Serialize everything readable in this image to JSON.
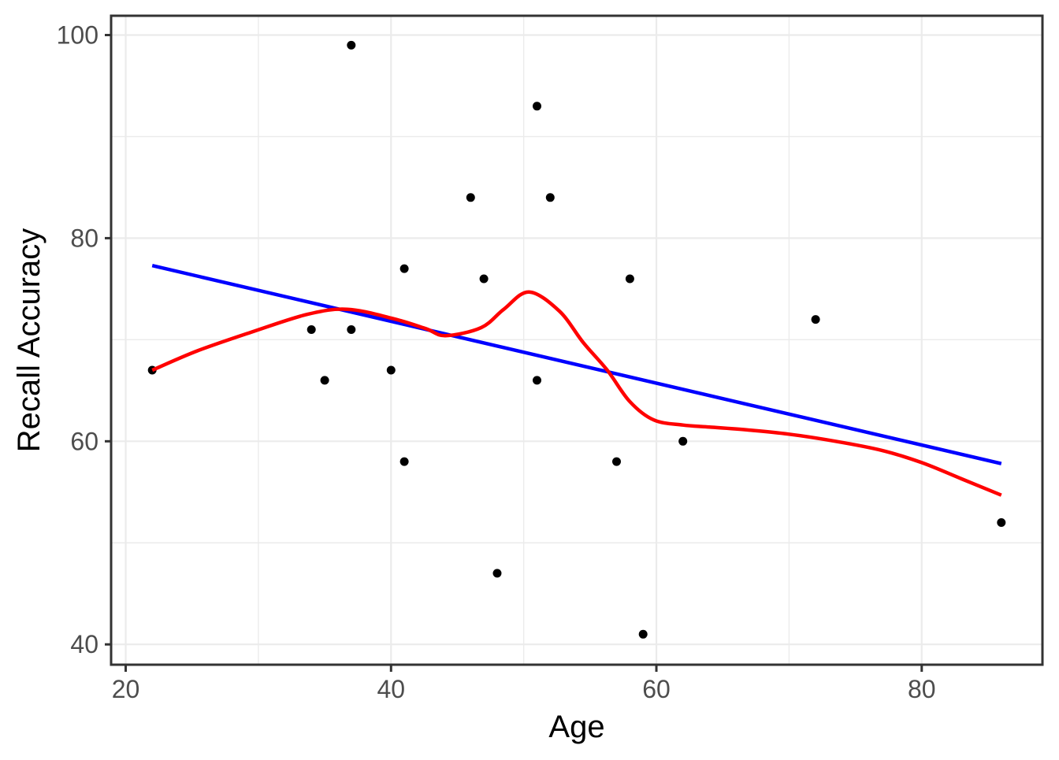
{
  "chart_data": {
    "type": "scatter",
    "title": "",
    "xlabel": "Age",
    "ylabel": "Recall Accuracy",
    "xlim": [
      18.9,
      89.1
    ],
    "ylim": [
      38.0,
      101.9
    ],
    "x_ticks": [
      20,
      40,
      60,
      80
    ],
    "y_ticks": [
      40,
      60,
      80,
      100
    ],
    "x_minor_gridlines": [
      30,
      50,
      70
    ],
    "y_minor_gridlines": [
      50,
      70,
      90
    ],
    "grid": true,
    "legend": "none",
    "points": [
      {
        "x": 22,
        "y": 67
      },
      {
        "x": 34,
        "y": 71
      },
      {
        "x": 35,
        "y": 66
      },
      {
        "x": 37,
        "y": 71
      },
      {
        "x": 37,
        "y": 99
      },
      {
        "x": 40,
        "y": 67
      },
      {
        "x": 41,
        "y": 58
      },
      {
        "x": 41,
        "y": 77
      },
      {
        "x": 46,
        "y": 84
      },
      {
        "x": 47,
        "y": 76
      },
      {
        "x": 48,
        "y": 47
      },
      {
        "x": 51,
        "y": 66
      },
      {
        "x": 51,
        "y": 93
      },
      {
        "x": 52,
        "y": 84
      },
      {
        "x": 57,
        "y": 58
      },
      {
        "x": 58,
        "y": 76
      },
      {
        "x": 59,
        "y": 41
      },
      {
        "x": 62,
        "y": 60
      },
      {
        "x": 72,
        "y": 72
      },
      {
        "x": 86,
        "y": 52
      }
    ],
    "series": [
      {
        "name": "linear-fit",
        "type": "line",
        "color": "#0000FF",
        "x": [
          22,
          86
        ],
        "y": [
          77.3,
          57.8
        ]
      },
      {
        "name": "loess-fit",
        "type": "smooth",
        "color": "#FF0000",
        "x": [
          22,
          25.4,
          29.6,
          33.7,
          36.7,
          40.1,
          42.6,
          44.1,
          46.8,
          48.5,
          50.4,
          52.7,
          54.5,
          56.3,
          58.0,
          59.8,
          62.0,
          64.0,
          67.0,
          70.0,
          73.5,
          77.0,
          80.0,
          83.0,
          86.0
        ],
        "y": [
          67.0,
          68.9,
          70.8,
          72.5,
          73.0,
          72.1,
          71.1,
          70.4,
          71.2,
          73.0,
          74.7,
          72.8,
          69.7,
          67.0,
          63.9,
          62.1,
          61.6,
          61.4,
          61.1,
          60.7,
          60.0,
          59.1,
          57.9,
          56.3,
          54.7
        ]
      }
    ]
  },
  "theme": {
    "background": "#FFFFFF",
    "panel_background": "#FFFFFF",
    "panel_border": "#333333",
    "grid_major": "#EBEBEB",
    "grid_minor": "#EBEBEB",
    "tick_mark": "#333333",
    "tick_label": "#4D4D4D",
    "axis_title": "#000000",
    "point": "#000000"
  }
}
